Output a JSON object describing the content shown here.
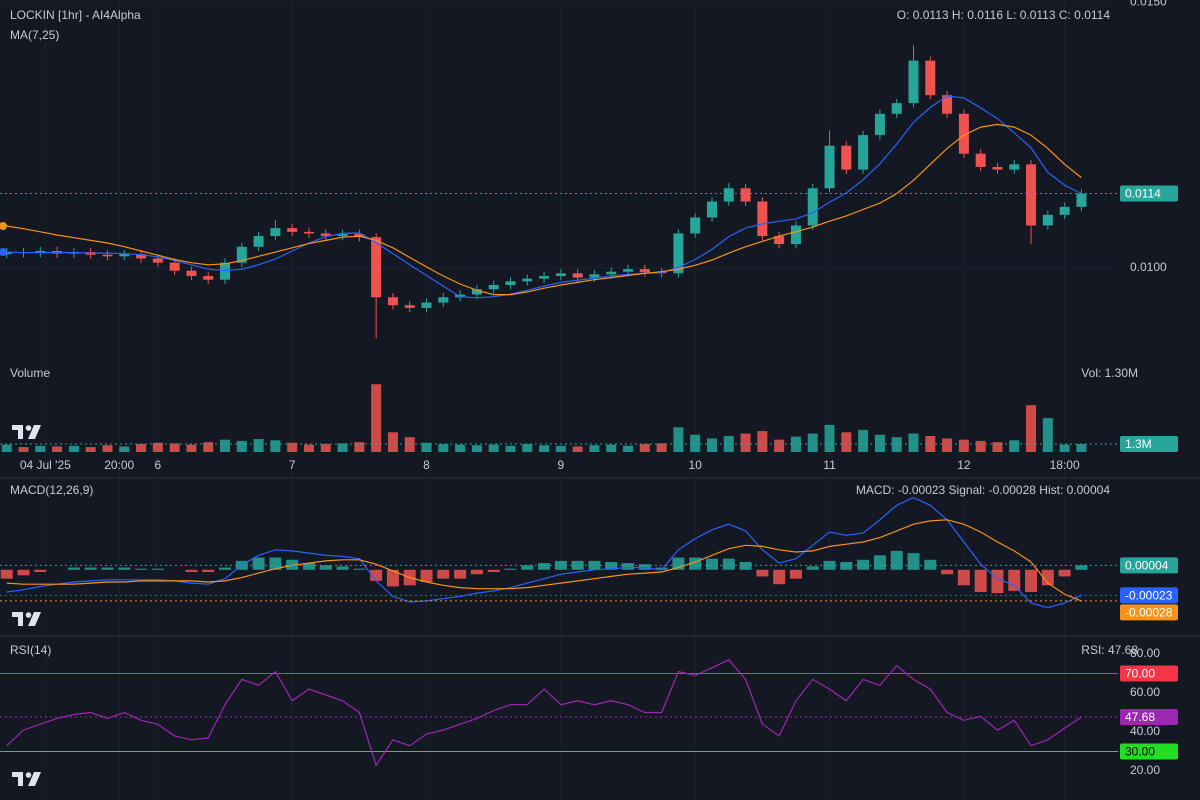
{
  "chart_data": [
    {
      "type": "candlestick",
      "title": "LOCKIN [1hr] - AI4Alpha",
      "subtitle": "O: 0.0113 H: 0.0116 L: 0.0113 C: 0.0114",
      "indicator_label": "MA(7,25)",
      "up_color": "#26a69a",
      "down_color": "#ef5350",
      "grid": true,
      "xlim": [
        -0.4,
        66
      ],
      "xticks": [
        {
          "value": 2.3,
          "label": "04 Jul '25"
        },
        {
          "value": 6.7,
          "label": "20:00"
        },
        {
          "value": 9,
          "label": "6"
        },
        {
          "value": 17,
          "label": "7"
        },
        {
          "value": 25,
          "label": "8"
        },
        {
          "value": 33,
          "label": "9"
        },
        {
          "value": 41,
          "label": "10"
        },
        {
          "value": 49,
          "label": "11"
        },
        {
          "value": 57,
          "label": "12"
        },
        {
          "value": 63,
          "label": "18:00"
        }
      ],
      "ylim": [
        0.00827,
        0.01504
      ],
      "yticks": [
        {
          "value": 0.01,
          "label": "0.0100"
        },
        {
          "value": 0.015,
          "label": "0.0150"
        }
      ],
      "price_line": {
        "value": 0.0114,
        "label": "0.0114"
      },
      "open": [
        0.01026,
        0.0103,
        0.01028,
        0.01032,
        0.01027,
        0.0103,
        0.01025,
        0.01022,
        0.01026,
        0.01018,
        0.0101,
        0.00995,
        0.00985,
        0.00978,
        0.0101,
        0.0104,
        0.0106,
        0.01075,
        0.01068,
        0.01065,
        0.0106,
        0.01064,
        0.01058,
        0.00945,
        0.0093,
        0.00925,
        0.00935,
        0.00945,
        0.0095,
        0.0096,
        0.00968,
        0.00975,
        0.0098,
        0.00985,
        0.0099,
        0.00982,
        0.00988,
        0.00993,
        0.00998,
        0.00992,
        0.0099,
        0.01065,
        0.01095,
        0.01125,
        0.0115,
        0.01125,
        0.0106,
        0.01045,
        0.0108,
        0.0115,
        0.0123,
        0.01185,
        0.0125,
        0.0129,
        0.0131,
        0.0139,
        0.01325,
        0.0129,
        0.01215,
        0.0119,
        0.01185,
        0.01195,
        0.0108,
        0.011,
        0.01115
      ],
      "high": [
        0.01038,
        0.01038,
        0.0104,
        0.0104,
        0.01038,
        0.01038,
        0.01033,
        0.01034,
        0.01034,
        0.01026,
        0.01018,
        0.01003,
        0.00993,
        0.01018,
        0.01048,
        0.01068,
        0.0109,
        0.01083,
        0.01076,
        0.01073,
        0.01072,
        0.01072,
        0.01066,
        0.00953,
        0.00938,
        0.00943,
        0.00953,
        0.00958,
        0.00968,
        0.00976,
        0.00983,
        0.00988,
        0.00993,
        0.00998,
        0.00998,
        0.00996,
        0.01001,
        0.01006,
        0.01006,
        0.01,
        0.01073,
        0.01103,
        0.01133,
        0.0116,
        0.01158,
        0.01133,
        0.01068,
        0.01088,
        0.01158,
        0.01258,
        0.01238,
        0.01258,
        0.01298,
        0.01318,
        0.01419,
        0.01398,
        0.01333,
        0.01298,
        0.01223,
        0.01198,
        0.01203,
        0.01203,
        0.01108,
        0.01123,
        0.01148
      ],
      "low": [
        0.01018,
        0.0102,
        0.0102,
        0.01019,
        0.01019,
        0.01017,
        0.01014,
        0.01014,
        0.0101,
        0.01002,
        0.00987,
        0.00977,
        0.0097,
        0.0097,
        0.01002,
        0.01032,
        0.01052,
        0.0106,
        0.01057,
        0.01052,
        0.01052,
        0.0105,
        0.00868,
        0.00922,
        0.00917,
        0.00917,
        0.00927,
        0.00937,
        0.00942,
        0.00952,
        0.0096,
        0.00967,
        0.00972,
        0.00977,
        0.00974,
        0.00974,
        0.0098,
        0.00985,
        0.00984,
        0.00982,
        0.00982,
        0.01057,
        0.01087,
        0.01117,
        0.01117,
        0.01052,
        0.01037,
        0.01037,
        0.01072,
        0.01142,
        0.01177,
        0.01177,
        0.01242,
        0.01282,
        0.01302,
        0.01317,
        0.01282,
        0.01207,
        0.01182,
        0.01177,
        0.01177,
        0.01045,
        0.01072,
        0.01092,
        0.01107
      ],
      "close": [
        0.0103,
        0.01028,
        0.01032,
        0.01027,
        0.0103,
        0.01025,
        0.01022,
        0.01026,
        0.01018,
        0.0101,
        0.00995,
        0.00985,
        0.00978,
        0.0101,
        0.0104,
        0.0106,
        0.01075,
        0.01068,
        0.01065,
        0.0106,
        0.01064,
        0.01058,
        0.00945,
        0.0093,
        0.00925,
        0.00935,
        0.00945,
        0.0095,
        0.0096,
        0.00968,
        0.00975,
        0.0098,
        0.00985,
        0.0099,
        0.00982,
        0.00988,
        0.00993,
        0.00998,
        0.00992,
        0.0099,
        0.01065,
        0.01095,
        0.01125,
        0.0115,
        0.01125,
        0.0106,
        0.01045,
        0.0108,
        0.0115,
        0.0123,
        0.01185,
        0.0125,
        0.0129,
        0.0131,
        0.0139,
        0.01325,
        0.0129,
        0.01215,
        0.0119,
        0.01185,
        0.01195,
        0.0108,
        0.011,
        0.01115,
        0.0114
      ],
      "overlays": [
        {
          "color": "#2962ff",
          "values": [
            0.0103,
            0.01029,
            0.01029,
            0.01029,
            0.01029,
            0.01028,
            0.01028,
            0.01027,
            0.01025,
            0.01021,
            0.01014,
            0.01006,
            0.00998,
            0.00995,
            0.00998,
            0.01006,
            0.01017,
            0.01032,
            0.01047,
            0.01059,
            0.01065,
            0.01066,
            0.01048,
            0.01027,
            0.01006,
            0.00986,
            0.00966,
            0.00946,
            0.00944,
            0.00946,
            0.00951,
            0.00958,
            0.00966,
            0.00973,
            0.00977,
            0.00981,
            0.00985,
            0.00988,
            0.0099,
            0.00991,
            0.01001,
            0.01016,
            0.01035,
            0.01059,
            0.01075,
            0.01083,
            0.01088,
            0.01092,
            0.01104,
            0.01124,
            0.01141,
            0.01166,
            0.01196,
            0.01233,
            0.01274,
            0.01302,
            0.01323,
            0.0132,
            0.01301,
            0.01281,
            0.01254,
            0.01226,
            0.0118,
            0.01156,
            0.0114
          ]
        },
        {
          "color": "#f7931a",
          "values": [
            0.01079,
            0.01074,
            0.01068,
            0.01062,
            0.01057,
            0.01052,
            0.01047,
            0.0104,
            0.01032,
            0.01024,
            0.01016,
            0.0101,
            0.01006,
            0.01008,
            0.01014,
            0.01022,
            0.0103,
            0.01038,
            0.01046,
            0.01052,
            0.01058,
            0.0106,
            0.01052,
            0.01038,
            0.0102,
            0.01002,
            0.00985,
            0.0097,
            0.00958,
            0.0095,
            0.0095,
            0.00955,
            0.00962,
            0.00968,
            0.00973,
            0.00978,
            0.00982,
            0.00986,
            0.0099,
            0.00993,
            0.00998,
            0.01005,
            0.01015,
            0.01028,
            0.0104,
            0.0105,
            0.0106,
            0.01068,
            0.01077,
            0.01088,
            0.01098,
            0.0111,
            0.01122,
            0.0114,
            0.01165,
            0.01195,
            0.01225,
            0.0125,
            0.01265,
            0.0127,
            0.01265,
            0.0125,
            0.01225,
            0.01195,
            0.0117
          ]
        }
      ]
    },
    {
      "type": "bar",
      "title": "Volume",
      "subtitle": "Vol: 1.30M",
      "ylim": [
        0,
        12500000
      ],
      "last_label": {
        "value": 1300000,
        "label": "1.3M"
      },
      "values": [
        1200000,
        800000,
        1000000,
        900000,
        1000000,
        800000,
        1100000,
        900000,
        1300000,
        1500000,
        1400000,
        1200000,
        1600000,
        2000000,
        1800000,
        2100000,
        1900000,
        1500000,
        1200000,
        1300000,
        1400000,
        1600000,
        11000000,
        3200000,
        2400000,
        1500000,
        1300000,
        1200000,
        1100000,
        1200000,
        1000000,
        1300000,
        1100000,
        1000000,
        900000,
        1100000,
        1200000,
        1000000,
        1300000,
        1400000,
        4000000,
        2800000,
        2200000,
        2600000,
        3000000,
        3400000,
        2000000,
        2500000,
        3000000,
        4400000,
        3200000,
        3600000,
        2800000,
        2400000,
        3000000,
        2600000,
        2200000,
        2000000,
        1800000,
        1600000,
        1900000,
        7600000,
        5500000,
        1200000,
        1300000
      ]
    },
    {
      "type": "macd",
      "title": "MACD(12,26,9)",
      "subtitle": "MACD: -0.00023 Signal: -0.00028 Hist: 0.00004",
      "ylim": [
        -0.00056,
        0.00079
      ],
      "hist": {
        "up_color": "#26a69a",
        "down_color": "#ef5350",
        "values": [
          -8e-05,
          -5e-05,
          -2e-05,
          0.0,
          2e-05,
          2e-05,
          2e-05,
          2e-05,
          1e-05,
          1e-05,
          0.0,
          -2e-05,
          -2e-05,
          2e-05,
          8e-05,
          0.00011,
          0.00011,
          9e-05,
          6e-05,
          4e-05,
          3e-05,
          1e-05,
          -0.0001,
          -0.00015,
          -0.00014,
          -0.00011,
          -8e-05,
          -8e-05,
          -4e-05,
          -2e-05,
          1e-05,
          4e-05,
          6e-05,
          8e-05,
          8e-05,
          8e-05,
          7e-05,
          6e-05,
          5e-05,
          2e-05,
          0.00011,
          0.00011,
          0.0001,
          0.0001,
          7e-05,
          -6e-05,
          -0.00013,
          -8e-05,
          3e-05,
          8e-05,
          7e-05,
          9e-05,
          0.00013,
          0.00017,
          0.00015,
          9e-05,
          -4e-05,
          -0.00014,
          -0.0002,
          -0.00021,
          -0.00019,
          -0.0002,
          -0.00014,
          -6e-05,
          4e-05
        ]
      },
      "macd": {
        "color": "#2962ff",
        "values": [
          -0.0002,
          -0.00018,
          -0.00015,
          -0.00013,
          -0.00011,
          -0.0001,
          -9e-05,
          -9e-05,
          -9e-05,
          -9e-05,
          -0.0001,
          -0.00012,
          -0.00013,
          -8e-05,
          4e-05,
          0.00013,
          0.00018,
          0.00017,
          0.00015,
          0.00013,
          0.00012,
          0.0001,
          -0.0001,
          -0.00024,
          -0.00029,
          -0.00028,
          -0.00026,
          -0.00024,
          -0.00021,
          -0.00019,
          -0.00016,
          -0.00012,
          -8e-05,
          -4e-05,
          -2e-05,
          0.0,
          1e-05,
          2e-05,
          2e-05,
          0.0,
          0.00018,
          0.00028,
          0.00036,
          0.00041,
          0.00035,
          0.00018,
          6e-05,
          0.0001,
          0.00022,
          0.00034,
          0.00031,
          0.00033,
          0.00045,
          0.00058,
          0.00065,
          0.00058,
          0.00045,
          0.00025,
          5e-05,
          -8e-05,
          -0.00014,
          -0.0003,
          -0.00034,
          -0.0003,
          -0.00023
        ]
      },
      "signal": {
        "color": "#f7931a",
        "values": [
          -0.00012,
          -0.00013,
          -0.00013,
          -0.00013,
          -0.00013,
          -0.00012,
          -0.00011,
          -0.00011,
          -0.0001,
          -0.0001,
          -0.0001,
          -0.0001,
          -0.00011,
          -0.0001,
          -7e-05,
          -3e-05,
          1e-05,
          4e-05,
          6e-05,
          8e-05,
          9e-05,
          9e-05,
          5e-05,
          -1e-05,
          -7e-05,
          -0.00011,
          -0.00014,
          -0.00016,
          -0.00017,
          -0.00017,
          -0.00017,
          -0.00016,
          -0.00014,
          -0.00012,
          -0.0001,
          -8e-05,
          -6e-05,
          -4e-05,
          -3e-05,
          -2e-05,
          2e-05,
          7e-05,
          0.00013,
          0.00019,
          0.00022,
          0.00021,
          0.00018,
          0.00016,
          0.00017,
          0.00021,
          0.00023,
          0.00025,
          0.00029,
          0.00035,
          0.00041,
          0.00044,
          0.00045,
          0.00041,
          0.00034,
          0.00025,
          0.00017,
          7e-05,
          -0.00012,
          -0.00022,
          -0.00028
        ]
      }
    },
    {
      "type": "line",
      "title": "RSI(14)",
      "subtitle": "RSI: 47.68",
      "color": "#9c27b0",
      "ylim": [
        7.7,
        87.2
      ],
      "yticks": [
        {
          "value": 20,
          "label": "20.00"
        },
        {
          "value": 40,
          "label": "40.00"
        },
        {
          "value": 60,
          "label": "60.00"
        },
        {
          "value": 80,
          "label": "80.00"
        }
      ],
      "bands": [
        {
          "value": 70,
          "label": "70.00",
          "color": "#f23645"
        },
        {
          "value": 30,
          "label": "30.00",
          "color": "#22dd22"
        }
      ],
      "values": [
        33,
        41,
        44,
        47,
        49,
        50,
        47,
        50,
        46,
        44,
        38,
        36,
        37,
        54,
        67,
        64,
        71,
        56,
        62,
        59,
        56,
        50,
        23,
        36,
        33,
        39,
        41,
        44,
        47,
        51,
        54,
        54,
        62,
        54,
        56,
        54,
        56,
        54,
        50,
        50,
        71,
        69,
        73,
        77,
        67,
        44,
        38,
        56,
        67,
        62,
        56,
        67,
        64,
        74,
        67,
        62,
        50,
        46,
        48,
        41,
        46,
        33,
        36,
        42,
        47.68
      ]
    }
  ]
}
